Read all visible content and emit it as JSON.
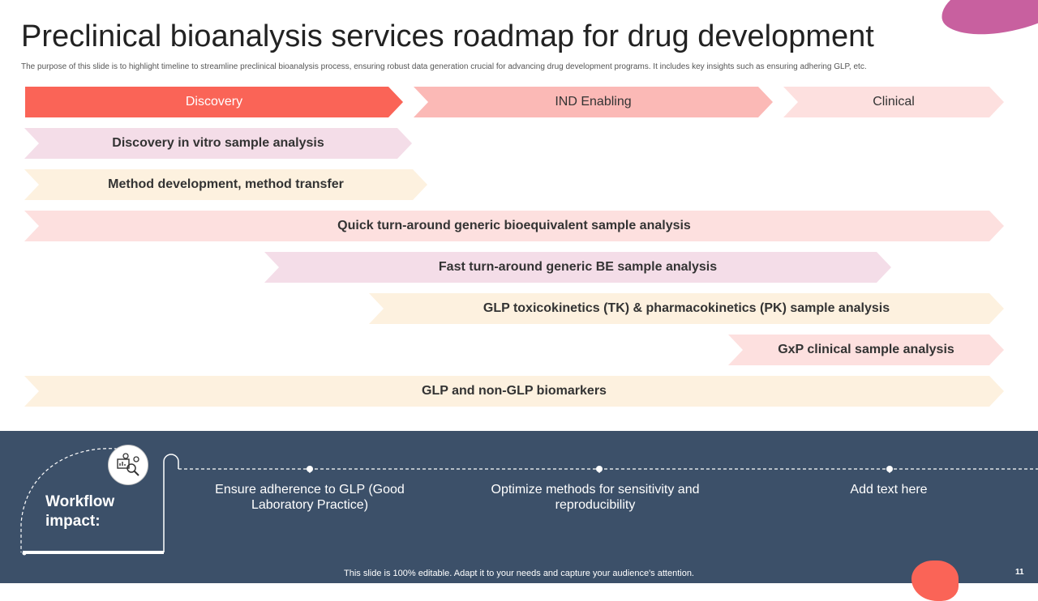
{
  "title": "Preclinical bioanalysis services roadmap for drug development",
  "subtitle": "The purpose of this slide is to highlight timeline to streamline preclinical bioanalysis process, ensuring robust data generation crucial for advancing drug development programs. It includes key insights such as ensuring adhering GLP, etc.",
  "phases": [
    {
      "label": "Discovery",
      "color": "#fa6457"
    },
    {
      "label": "IND Enabling",
      "color": "#fbb9b6"
    },
    {
      "label": "Clinical",
      "color": "#fde0df"
    }
  ],
  "services": [
    {
      "label": "Discovery in vitro sample analysis",
      "color": "#f4dde8"
    },
    {
      "label": "Method development, method transfer",
      "color": "#fdf1df"
    },
    {
      "label": "Quick turn-around generic bioequivalent sample analysis",
      "color": "#fde0df"
    },
    {
      "label": "Fast turn-around generic BE sample analysis",
      "color": "#f4dde8"
    },
    {
      "label": "GLP toxicokinetics (TK) & pharmacokinetics (PK) sample analysis",
      "color": "#fdf1df"
    },
    {
      "label": "GxP clinical sample analysis",
      "color": "#fde0df"
    },
    {
      "label": "GLP and non-GLP biomarkers",
      "color": "#fdf1df"
    }
  ],
  "workflow": {
    "label": "Workflow impact:",
    "icon": "analytics-magnifier-icon",
    "impacts": [
      "Ensure adherence to GLP (Good Laboratory Practice)",
      "Optimize methods for sensitivity and reproducibility",
      "Add text here"
    ]
  },
  "footer_note": "This slide is 100% editable. Adapt it to your needs and capture your audience's attention.",
  "page_number": "11"
}
